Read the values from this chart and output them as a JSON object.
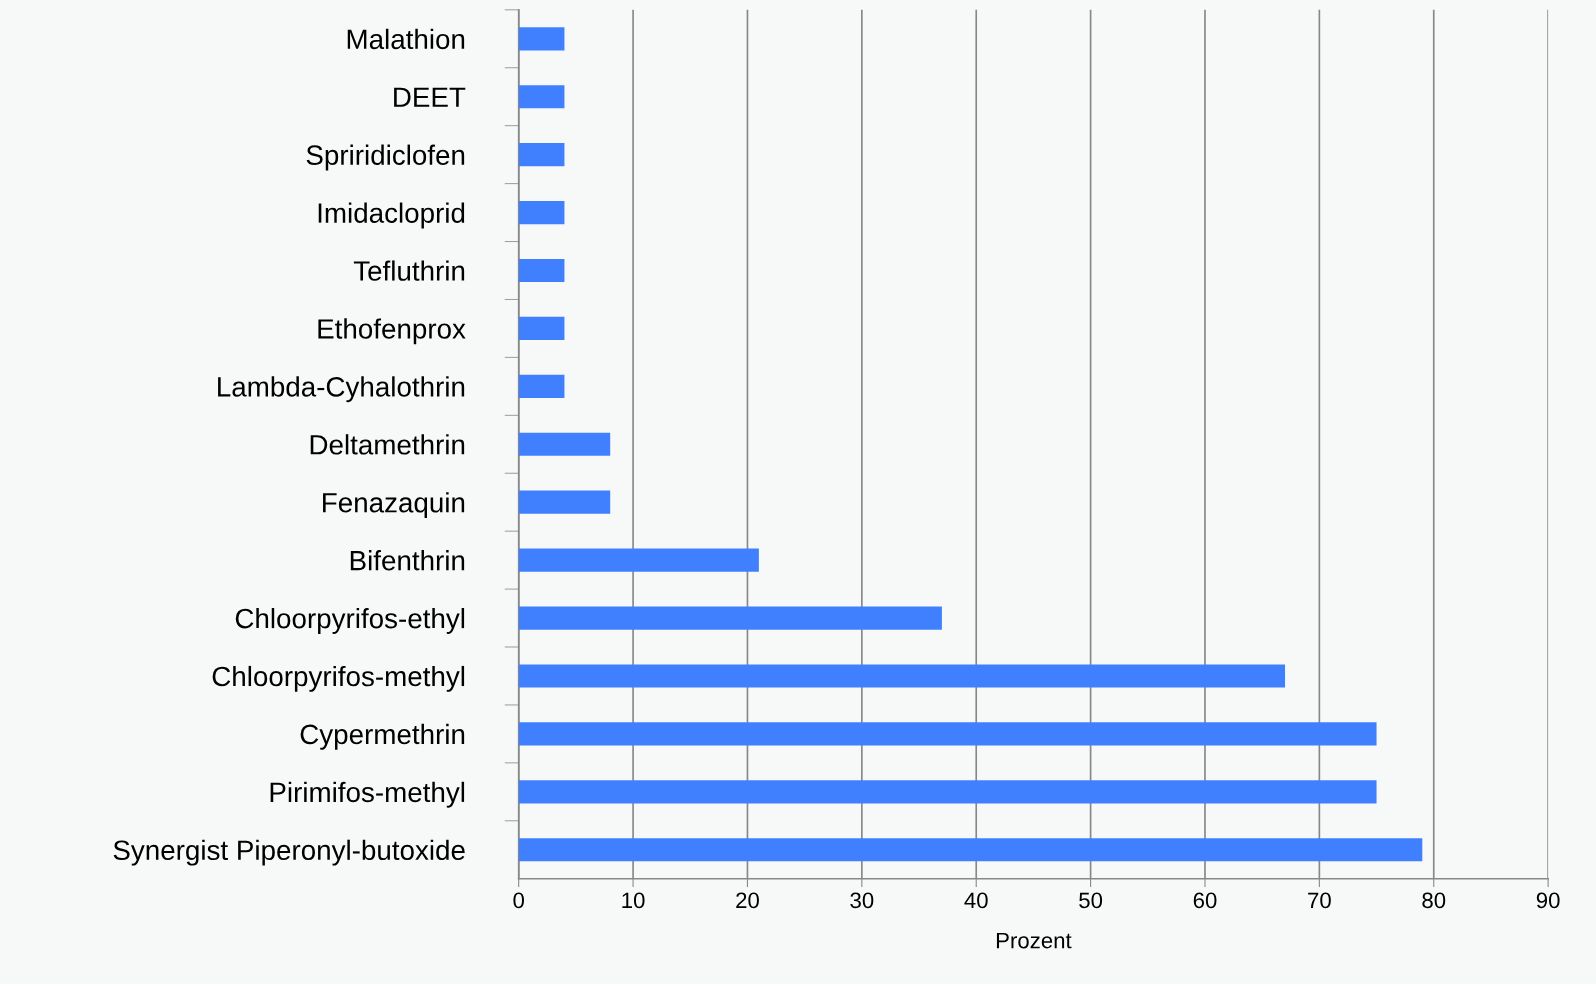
{
  "chart_data": {
    "type": "bar",
    "orientation": "horizontal",
    "xlabel": "Prozent",
    "categories": [
      "Malathion",
      "DEET",
      "Spriridiclofen",
      "Imidacloprid",
      "Tefluthrin",
      "Ethofenprox",
      "Lambda-Cyhalothrin",
      "Deltamethrin",
      "Fenazaquin",
      "Bifenthrin",
      "Chloorpyrifos-ethyl",
      "Chloorpyrifos-methyl",
      "Cypermethrin",
      "Pirimifos-methyl",
      "Synergist Piperonyl-butoxide"
    ],
    "values": [
      4,
      4,
      4,
      4,
      4,
      4,
      4,
      8,
      8,
      21,
      37,
      67,
      75,
      75,
      79
    ],
    "color": "#4080ff",
    "xlim": [
      0,
      90
    ],
    "xticks": [
      0,
      10,
      20,
      30,
      40,
      50,
      60,
      70,
      80,
      90
    ],
    "grid": "x",
    "legend": false
  }
}
